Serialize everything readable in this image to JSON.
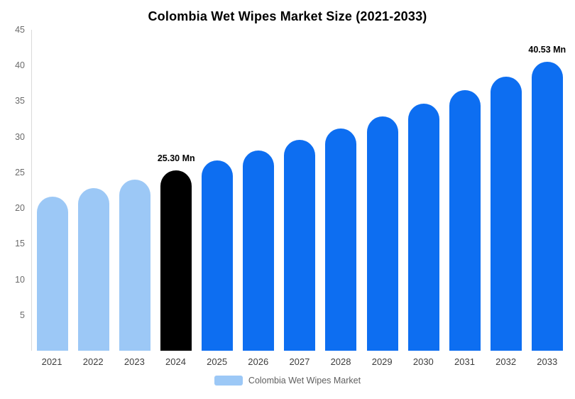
{
  "title": "Colombia Wet Wipes Market Size (2021-2033)",
  "legend": {
    "label": "Colombia Wet Wipes Market",
    "swatch_color": "#9CC8F6"
  },
  "chart_data": {
    "type": "bar",
    "title": "Colombia Wet Wipes Market Size (2021-2033)",
    "unit": "Mn",
    "categories": [
      "2021",
      "2022",
      "2023",
      "2024",
      "2025",
      "2026",
      "2027",
      "2028",
      "2029",
      "2030",
      "2031",
      "2032",
      "2033"
    ],
    "values": [
      21.63,
      22.79,
      24.01,
      25.3,
      26.66,
      28.09,
      29.6,
      31.19,
      32.87,
      34.64,
      36.5,
      38.46,
      40.53
    ],
    "colors": [
      "#9CC8F6",
      "#9CC8F6",
      "#9CC8F6",
      "#000000",
      "#0D6EF1",
      "#0D6EF1",
      "#0D6EF1",
      "#0D6EF1",
      "#0D6EF1",
      "#0D6EF1",
      "#0D6EF1",
      "#0D6EF1",
      "#0D6EF1"
    ],
    "annotations": {
      "3": "25.30 Mn",
      "12": "40.53 Mn"
    },
    "xlabel": "",
    "ylabel": "",
    "ylim": [
      0,
      45
    ],
    "yticks": [
      5,
      10,
      15,
      20,
      25,
      30,
      35,
      40,
      45
    ],
    "grid": false,
    "legend_position": "bottom",
    "legend_entries": [
      "Colombia Wet Wipes Market"
    ]
  }
}
